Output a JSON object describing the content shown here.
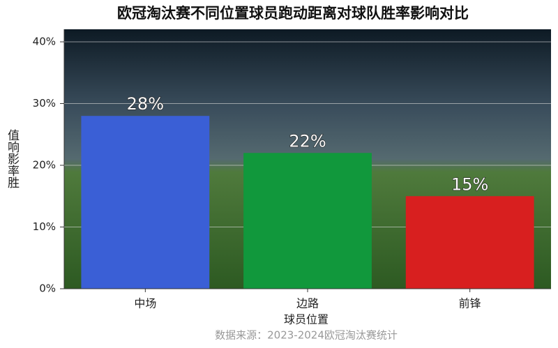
{
  "chart_data": {
    "type": "bar",
    "title": "欧冠淘汰赛不同位置球员跑动距离对球队胜率影响对比",
    "x_label": "球员位置",
    "y_label": "胜率影响值",
    "source": "数据来源：2023-2024欧冠淘汰赛统计",
    "categories": [
      "中场",
      "边路",
      "前锋"
    ],
    "values": [
      28,
      22,
      15
    ],
    "value_labels": [
      "28%",
      "22%",
      "15%"
    ],
    "colors": [
      "#3a5fd6",
      "#11983c",
      "#d81f1f"
    ],
    "ylim": [
      0,
      40
    ],
    "yticks": [
      {
        "value": 0,
        "label": "0%"
      },
      {
        "value": 10,
        "label": "10%"
      },
      {
        "value": 20,
        "label": "20%"
      },
      {
        "value": 30,
        "label": "30%"
      },
      {
        "value": 40,
        "label": "40%"
      }
    ],
    "grid": true
  }
}
